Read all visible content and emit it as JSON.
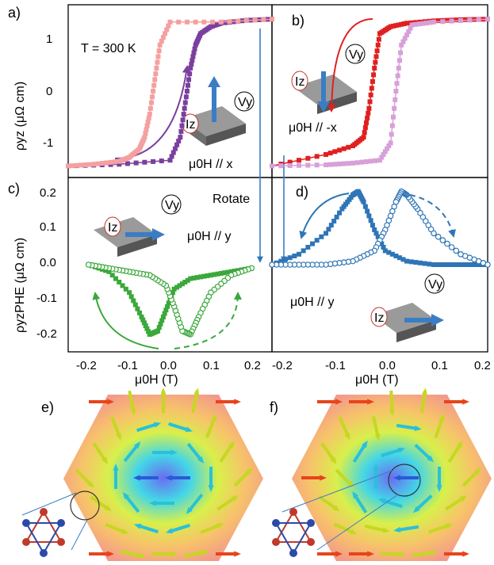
{
  "chart_data": [
    {
      "panel": "a)",
      "type": "line",
      "annotations": [
        "T = 300 K",
        "μ0H // x",
        "Iz",
        "Vy"
      ],
      "ylabel": "ρyz (μΩ cm)",
      "xlim": [
        -0.2,
        0.2
      ],
      "ylim": [
        -1.5,
        1.5
      ],
      "yticks": [
        "1",
        "0",
        "-1"
      ],
      "series": [
        {
          "color": "#7b3f9e",
          "x": [
            -0.2,
            -0.1,
            0.0,
            0.02,
            0.03,
            0.04,
            0.05,
            0.06,
            0.08,
            0.1,
            0.15,
            0.2
          ],
          "y": [
            -1.3,
            -1.27,
            -1.2,
            -0.8,
            -0.2,
            0.4,
            0.8,
            1.0,
            1.12,
            1.18,
            1.23,
            1.25
          ]
        },
        {
          "color": "#f4a0a0",
          "x": [
            0.2,
            0.1,
            0.0,
            -0.02,
            -0.03,
            -0.04,
            -0.05,
            -0.06,
            -0.08,
            -0.1,
            -0.15,
            -0.2
          ],
          "y": [
            1.25,
            1.2,
            1.2,
            0.8,
            0.2,
            -0.4,
            -0.8,
            -1.0,
            -1.15,
            -1.22,
            -1.27,
            -1.3
          ]
        }
      ]
    },
    {
      "panel": "b)",
      "type": "line",
      "annotations": [
        "μ0H // -x",
        "Iz",
        "Vy"
      ],
      "xlim": [
        -0.2,
        0.2
      ],
      "ylim": [
        -1.5,
        1.5
      ],
      "series": [
        {
          "color": "#e02020",
          "x": [
            -0.2,
            -0.1,
            -0.05,
            -0.03,
            -0.02,
            -0.01,
            0.0,
            0.02,
            0.05,
            0.1,
            0.15,
            0.2
          ],
          "y": [
            -1.3,
            -1.1,
            -0.95,
            -0.8,
            -0.3,
            0.4,
            1.0,
            1.12,
            1.18,
            1.22,
            1.24,
            1.25
          ]
        },
        {
          "color": "#d8a0d8",
          "x": [
            0.2,
            0.1,
            0.06,
            0.04,
            0.03,
            0.02,
            0.0,
            -0.05,
            -0.1,
            -0.2
          ],
          "y": [
            1.25,
            1.2,
            1.15,
            0.8,
            0.0,
            -0.9,
            -1.2,
            -1.25,
            -1.28,
            -1.3
          ]
        }
      ]
    },
    {
      "panel": "c)",
      "type": "scatter",
      "annotations": [
        "Rotate",
        "μ0H // y",
        "Iz",
        "Vy"
      ],
      "ylabel": "ρyzPHE (μΩ cm)",
      "xlabel": "μ0H (T)",
      "xlim": [
        -0.25,
        0.25
      ],
      "ylim": [
        -0.25,
        0.25
      ],
      "xticks": [
        "-0.2",
        "-0.1",
        "0.0",
        "0.1",
        "0.2"
      ],
      "yticks": [
        "0.2",
        "0.1",
        "0.0",
        "-0.1",
        "-0.2"
      ],
      "series": [
        {
          "color": "#3aa83a",
          "filled": true,
          "x": [
            -0.2,
            -0.15,
            -0.1,
            -0.07,
            -0.05,
            -0.03,
            -0.01,
            0.01,
            0.05,
            0.1,
            0.15,
            0.2
          ],
          "y": [
            0.0,
            -0.02,
            -0.08,
            -0.15,
            -0.2,
            -0.19,
            -0.13,
            -0.07,
            -0.04,
            -0.03,
            -0.02,
            -0.01
          ]
        },
        {
          "color": "#3aa83a",
          "filled": false,
          "x": [
            0.2,
            0.15,
            0.1,
            0.07,
            0.05,
            0.03,
            0.01,
            -0.01,
            -0.05,
            -0.1,
            -0.15,
            -0.2
          ],
          "y": [
            -0.01,
            -0.03,
            -0.08,
            -0.15,
            -0.2,
            -0.19,
            -0.12,
            -0.06,
            -0.03,
            -0.02,
            -0.01,
            0.0
          ]
        }
      ]
    },
    {
      "panel": "d)",
      "type": "scatter",
      "annotations": [
        "μ0H // y",
        "Iz",
        "Vy"
      ],
      "xlabel": "μ0H (T)",
      "xlim": [
        -0.2,
        0.2
      ],
      "ylim": [
        -0.25,
        0.25
      ],
      "xticks": [
        "-0.2",
        "-0.1",
        "0.0",
        "0.1",
        "0.2"
      ],
      "series": [
        {
          "color": "#2e75b6",
          "filled": true,
          "x": [
            -0.2,
            -0.15,
            -0.1,
            -0.07,
            -0.05,
            -0.04,
            -0.03,
            -0.01,
            0.01,
            0.05,
            0.1,
            0.15,
            0.2
          ],
          "y": [
            0.0,
            0.03,
            0.09,
            0.16,
            0.2,
            0.21,
            0.18,
            0.1,
            0.04,
            0.01,
            0.0,
            0.0,
            0.0
          ]
        },
        {
          "color": "#2e75b6",
          "filled": false,
          "x": [
            0.2,
            0.15,
            0.1,
            0.07,
            0.05,
            0.04,
            0.03,
            0.01,
            -0.01,
            -0.05,
            -0.1,
            -0.15,
            -0.2
          ],
          "y": [
            0.0,
            0.03,
            0.09,
            0.16,
            0.2,
            0.21,
            0.18,
            0.1,
            0.04,
            0.01,
            0.0,
            0.0,
            0.0
          ]
        }
      ]
    },
    {
      "panel": "e)",
      "type": "other"
    },
    {
      "panel": "f)",
      "type": "other"
    }
  ],
  "colors": {
    "purple": "#7b3f9e",
    "pink": "#f4a0a0",
    "red": "#e02020",
    "lilac": "#d8a0d8",
    "green": "#3aa83a",
    "blue": "#2e75b6",
    "arrow_blue": "#3b7dc4"
  }
}
